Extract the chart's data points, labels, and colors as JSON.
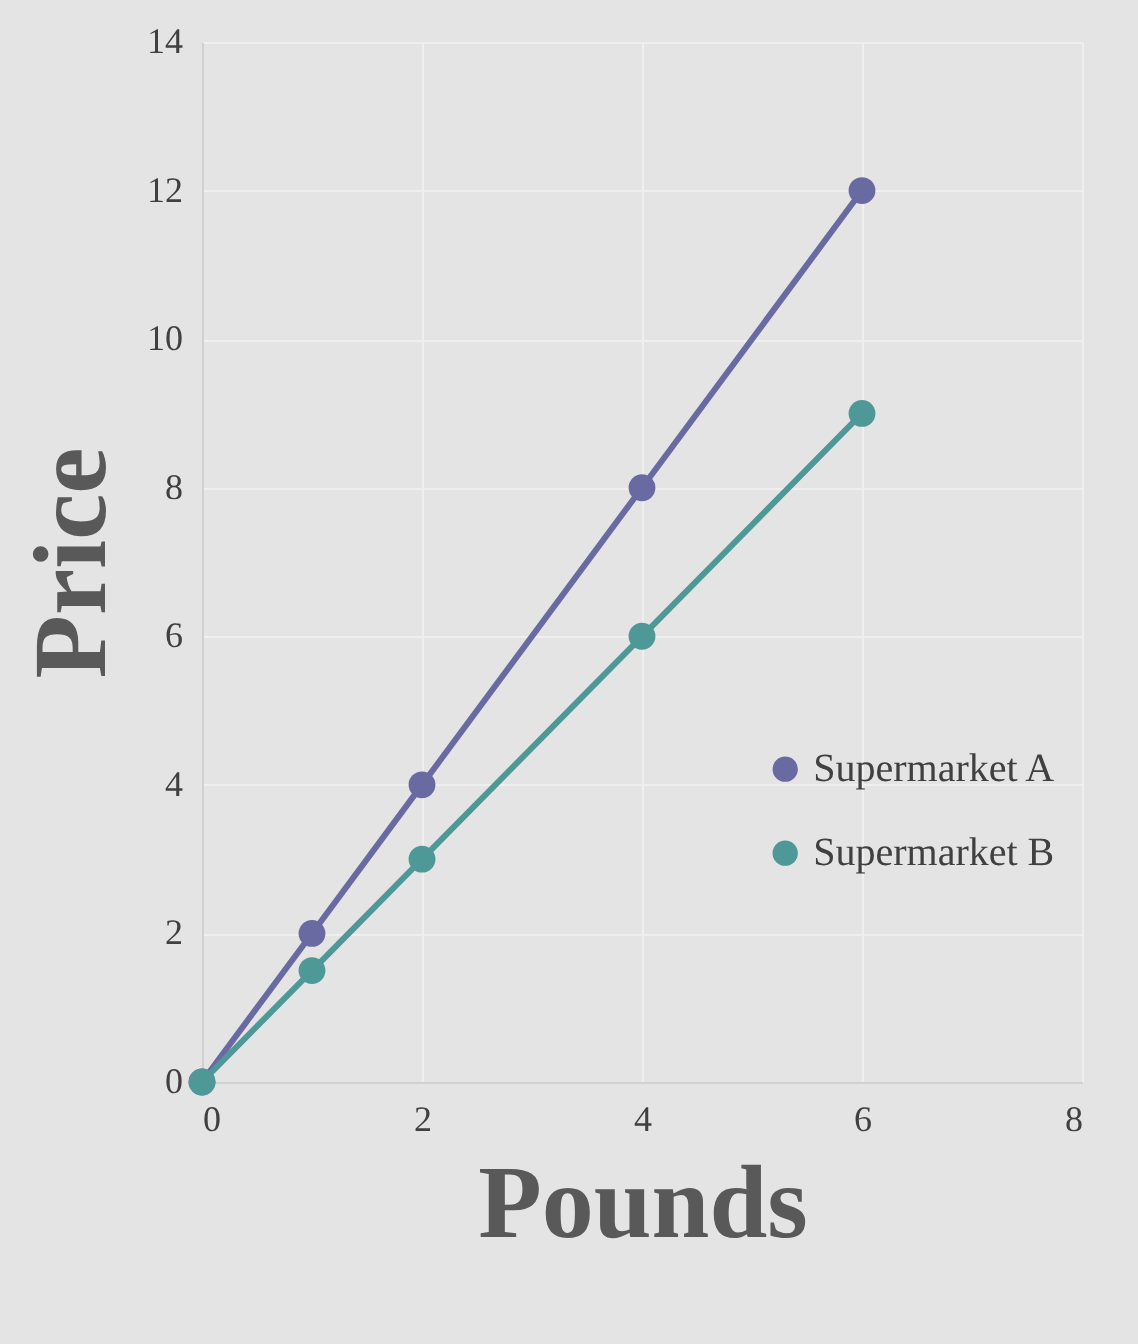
{
  "chart_data": {
    "type": "line",
    "xlabel": "Pounds",
    "ylabel": "Price",
    "x": [
      0,
      1,
      2,
      4,
      6
    ],
    "series": [
      {
        "name": "Supermarket A",
        "color": "#6a6aa2",
        "values": [
          0,
          2,
          4,
          8,
          12
        ]
      },
      {
        "name": "Supermarket B",
        "color": "#4f9898",
        "values": [
          0,
          1.5,
          3,
          6,
          9
        ]
      }
    ],
    "xlim": [
      0,
      8
    ],
    "xticks": [
      0,
      2,
      4,
      6,
      8
    ],
    "ylim": [
      0,
      14
    ],
    "yticks": [
      0,
      2,
      4,
      6,
      8,
      10,
      12,
      14
    ],
    "grid": true,
    "legend": "right",
    "marker": "circle",
    "line_style": "solid"
  }
}
